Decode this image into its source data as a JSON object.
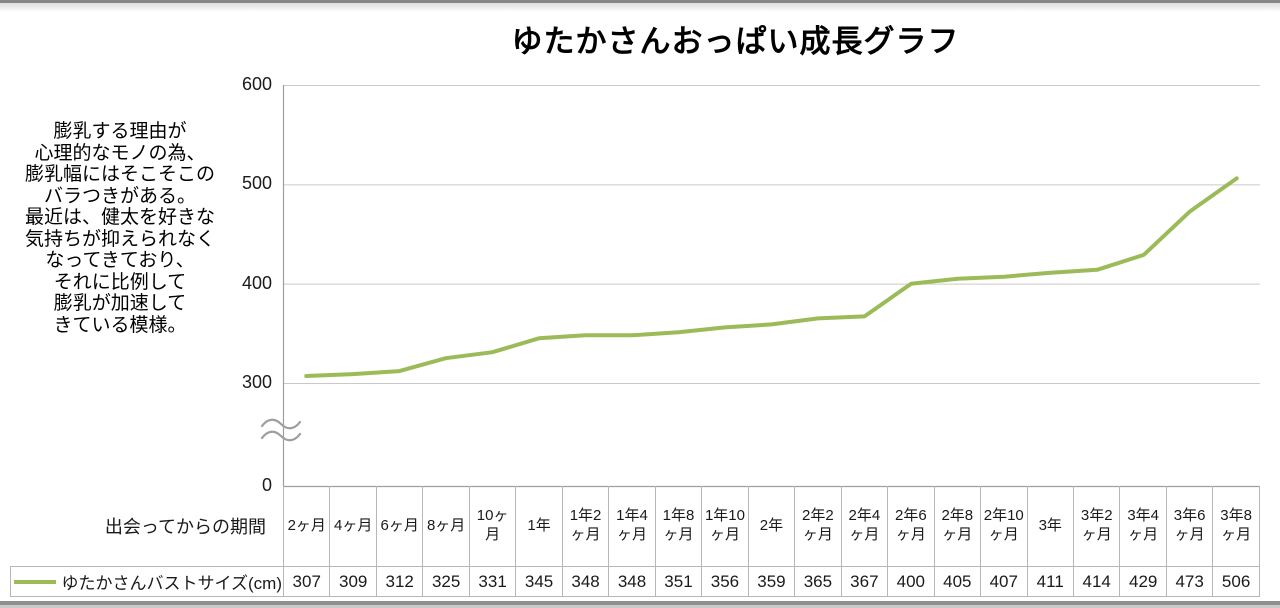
{
  "title": "ゆたかさんおっぱい成長グラフ",
  "annotation": "膨乳する理由が\n心理的なモノの為、\n膨乳幅にはそこそこの\nバラつきがある。\n最近は、健太を好きな\n気持ちが抑えられなく\nなってきており、\nそれに比例して\n膨乳が加速して\nきている模様。",
  "x_axis_header": "出会ってからの期間",
  "chart_data": {
    "type": "line",
    "title": "ゆたかさんおっぱい成長グラフ",
    "categories": [
      "2ヶ月",
      "4ヶ月",
      "6ヶ月",
      "8ヶ月",
      "10ヶ月",
      "1年",
      "1年2ヶ月",
      "1年4ヶ月",
      "1年8ヶ月",
      "1年10ヶ月",
      "2年",
      "2年2ヶ月",
      "2年4ヶ月",
      "2年6ヶ月",
      "2年8ヶ月",
      "2年10ヶ月",
      "3年",
      "3年2ヶ月",
      "3年4ヶ月",
      "3年6ヶ月",
      "3年8ヶ月"
    ],
    "series": [
      {
        "name": "ゆたかさんバストサイズ(cm)",
        "values": [
          307,
          309,
          312,
          325,
          331,
          345,
          348,
          348,
          351,
          356,
          359,
          365,
          367,
          400,
          405,
          407,
          411,
          414,
          429,
          473,
          506
        ]
      }
    ],
    "xlabel": "出会ってからの期間",
    "ylabel": "",
    "y_ticks": [
      600,
      500,
      400,
      300,
      0
    ],
    "ylim": [
      0,
      600
    ],
    "axis_break_between": [
      0,
      300
    ],
    "grid": true,
    "markers": false,
    "legend_position": "table-row-header"
  },
  "colors": {
    "line": "#9BBB59",
    "grid": "#c9c9c9",
    "axis": "#9e9e9e",
    "table_border": "#b7b7b7"
  }
}
